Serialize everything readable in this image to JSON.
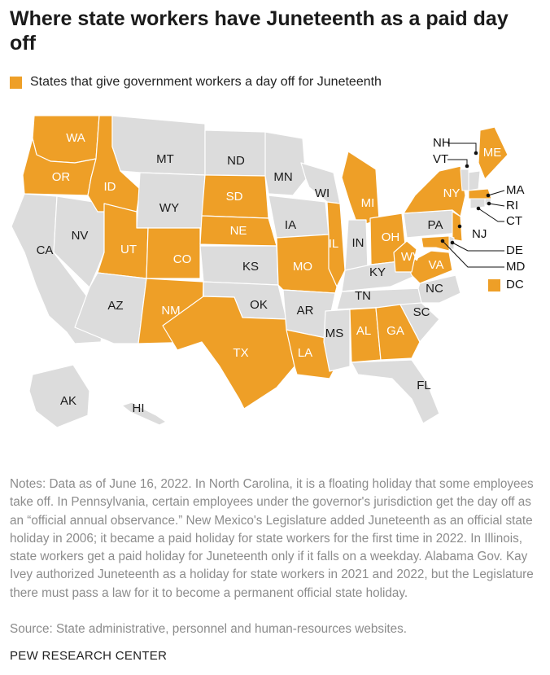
{
  "title": "Where state workers have Juneteenth as a paid day off",
  "legend": {
    "label": "States that give government workers a day off for Juneteenth"
  },
  "colors": {
    "highlight": "#ee9f27",
    "other": "#dcdcdc",
    "border": "#ffffff",
    "label_on_highlight": "#ffffff",
    "label_on_other": "#1a1a1a"
  },
  "map": {
    "states": [
      {
        "abbr": "WA",
        "highlighted": true
      },
      {
        "abbr": "OR",
        "highlighted": true
      },
      {
        "abbr": "CA",
        "highlighted": false
      },
      {
        "abbr": "NV",
        "highlighted": false
      },
      {
        "abbr": "ID",
        "highlighted": true
      },
      {
        "abbr": "MT",
        "highlighted": false
      },
      {
        "abbr": "WY",
        "highlighted": false
      },
      {
        "abbr": "UT",
        "highlighted": true
      },
      {
        "abbr": "AZ",
        "highlighted": false
      },
      {
        "abbr": "CO",
        "highlighted": true
      },
      {
        "abbr": "NM",
        "highlighted": true
      },
      {
        "abbr": "ND",
        "highlighted": false
      },
      {
        "abbr": "SD",
        "highlighted": true
      },
      {
        "abbr": "NE",
        "highlighted": true
      },
      {
        "abbr": "KS",
        "highlighted": false
      },
      {
        "abbr": "OK",
        "highlighted": false
      },
      {
        "abbr": "TX",
        "highlighted": true
      },
      {
        "abbr": "MN",
        "highlighted": false
      },
      {
        "abbr": "IA",
        "highlighted": false
      },
      {
        "abbr": "MO",
        "highlighted": true
      },
      {
        "abbr": "AR",
        "highlighted": false
      },
      {
        "abbr": "LA",
        "highlighted": true
      },
      {
        "abbr": "WI",
        "highlighted": false
      },
      {
        "abbr": "IL",
        "highlighted": true
      },
      {
        "abbr": "MI",
        "highlighted": true
      },
      {
        "abbr": "IN",
        "highlighted": false
      },
      {
        "abbr": "OH",
        "highlighted": true
      },
      {
        "abbr": "KY",
        "highlighted": false
      },
      {
        "abbr": "TN",
        "highlighted": false
      },
      {
        "abbr": "MS",
        "highlighted": false
      },
      {
        "abbr": "AL",
        "highlighted": true
      },
      {
        "abbr": "GA",
        "highlighted": true
      },
      {
        "abbr": "FL",
        "highlighted": false
      },
      {
        "abbr": "SC",
        "highlighted": false
      },
      {
        "abbr": "NC",
        "highlighted": false
      },
      {
        "abbr": "VA",
        "highlighted": true
      },
      {
        "abbr": "WV",
        "highlighted": true
      },
      {
        "abbr": "PA",
        "highlighted": false
      },
      {
        "abbr": "NY",
        "highlighted": true
      },
      {
        "abbr": "ME",
        "highlighted": true
      },
      {
        "abbr": "AK",
        "highlighted": false
      },
      {
        "abbr": "HI",
        "highlighted": false
      }
    ],
    "small_states": [
      {
        "abbr": "NH",
        "highlighted": false
      },
      {
        "abbr": "VT",
        "highlighted": false
      },
      {
        "abbr": "MA",
        "highlighted": true
      },
      {
        "abbr": "RI",
        "highlighted": false
      },
      {
        "abbr": "CT",
        "highlighted": false
      },
      {
        "abbr": "NJ",
        "highlighted": true
      },
      {
        "abbr": "DE",
        "highlighted": false
      },
      {
        "abbr": "MD",
        "highlighted": true
      },
      {
        "abbr": "DC",
        "highlighted": true
      }
    ]
  },
  "notes": "Notes: Data as of June 16, 2022. In North Carolina, it is a floating holiday that some employees take off. In Pennsylvania, certain employees under the governor's jurisdiction get the day off as an “official annual observance.” New Mexico's Legislature added Juneteenth as an official state holiday in 2006; it became a paid holiday for state workers for the first time in 2022. In Illinois, state workers get a paid holiday for Juneteenth only if it falls on a weekday. Alabama Gov. Kay Ivey authorized Juneteenth as a holiday for state workers in 2021 and 2022, but the Legislature there must pass a law for it to become a permanent official state holiday.",
  "source": "Source: State administrative, personnel and human-resources websites.",
  "footer": "PEW RESEARCH CENTER"
}
